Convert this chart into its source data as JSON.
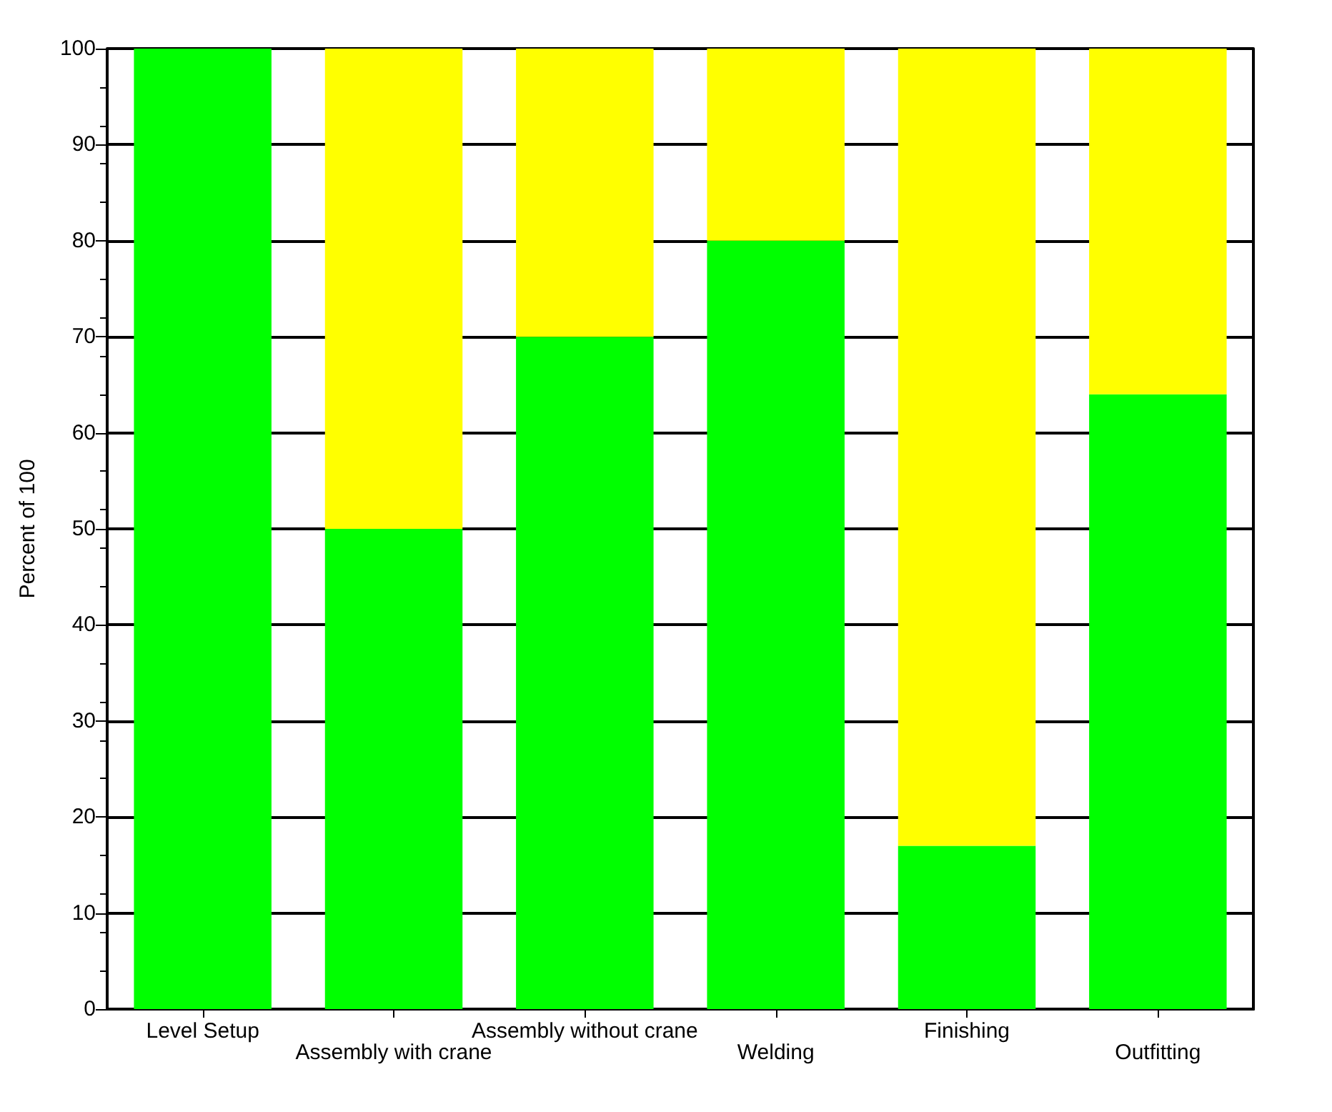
{
  "chart_data": {
    "type": "bar",
    "ylabel": "Percent of 100",
    "categories": [
      "Level Setup",
      "Assembly with crane",
      "Assembly without crane",
      "Welding",
      "Finishing",
      "Outfitting"
    ],
    "series": [
      {
        "color": "#00ff00",
        "values": [
          100,
          50,
          70,
          80,
          17,
          64
        ]
      },
      {
        "color": "#ffff00",
        "values": [
          0,
          50,
          30,
          20,
          83,
          36
        ]
      }
    ],
    "stacked": true,
    "ylim": [
      0,
      100
    ],
    "yticks": [
      0,
      10,
      20,
      30,
      40,
      50,
      60,
      70,
      80,
      90,
      100
    ],
    "grid": "y"
  }
}
